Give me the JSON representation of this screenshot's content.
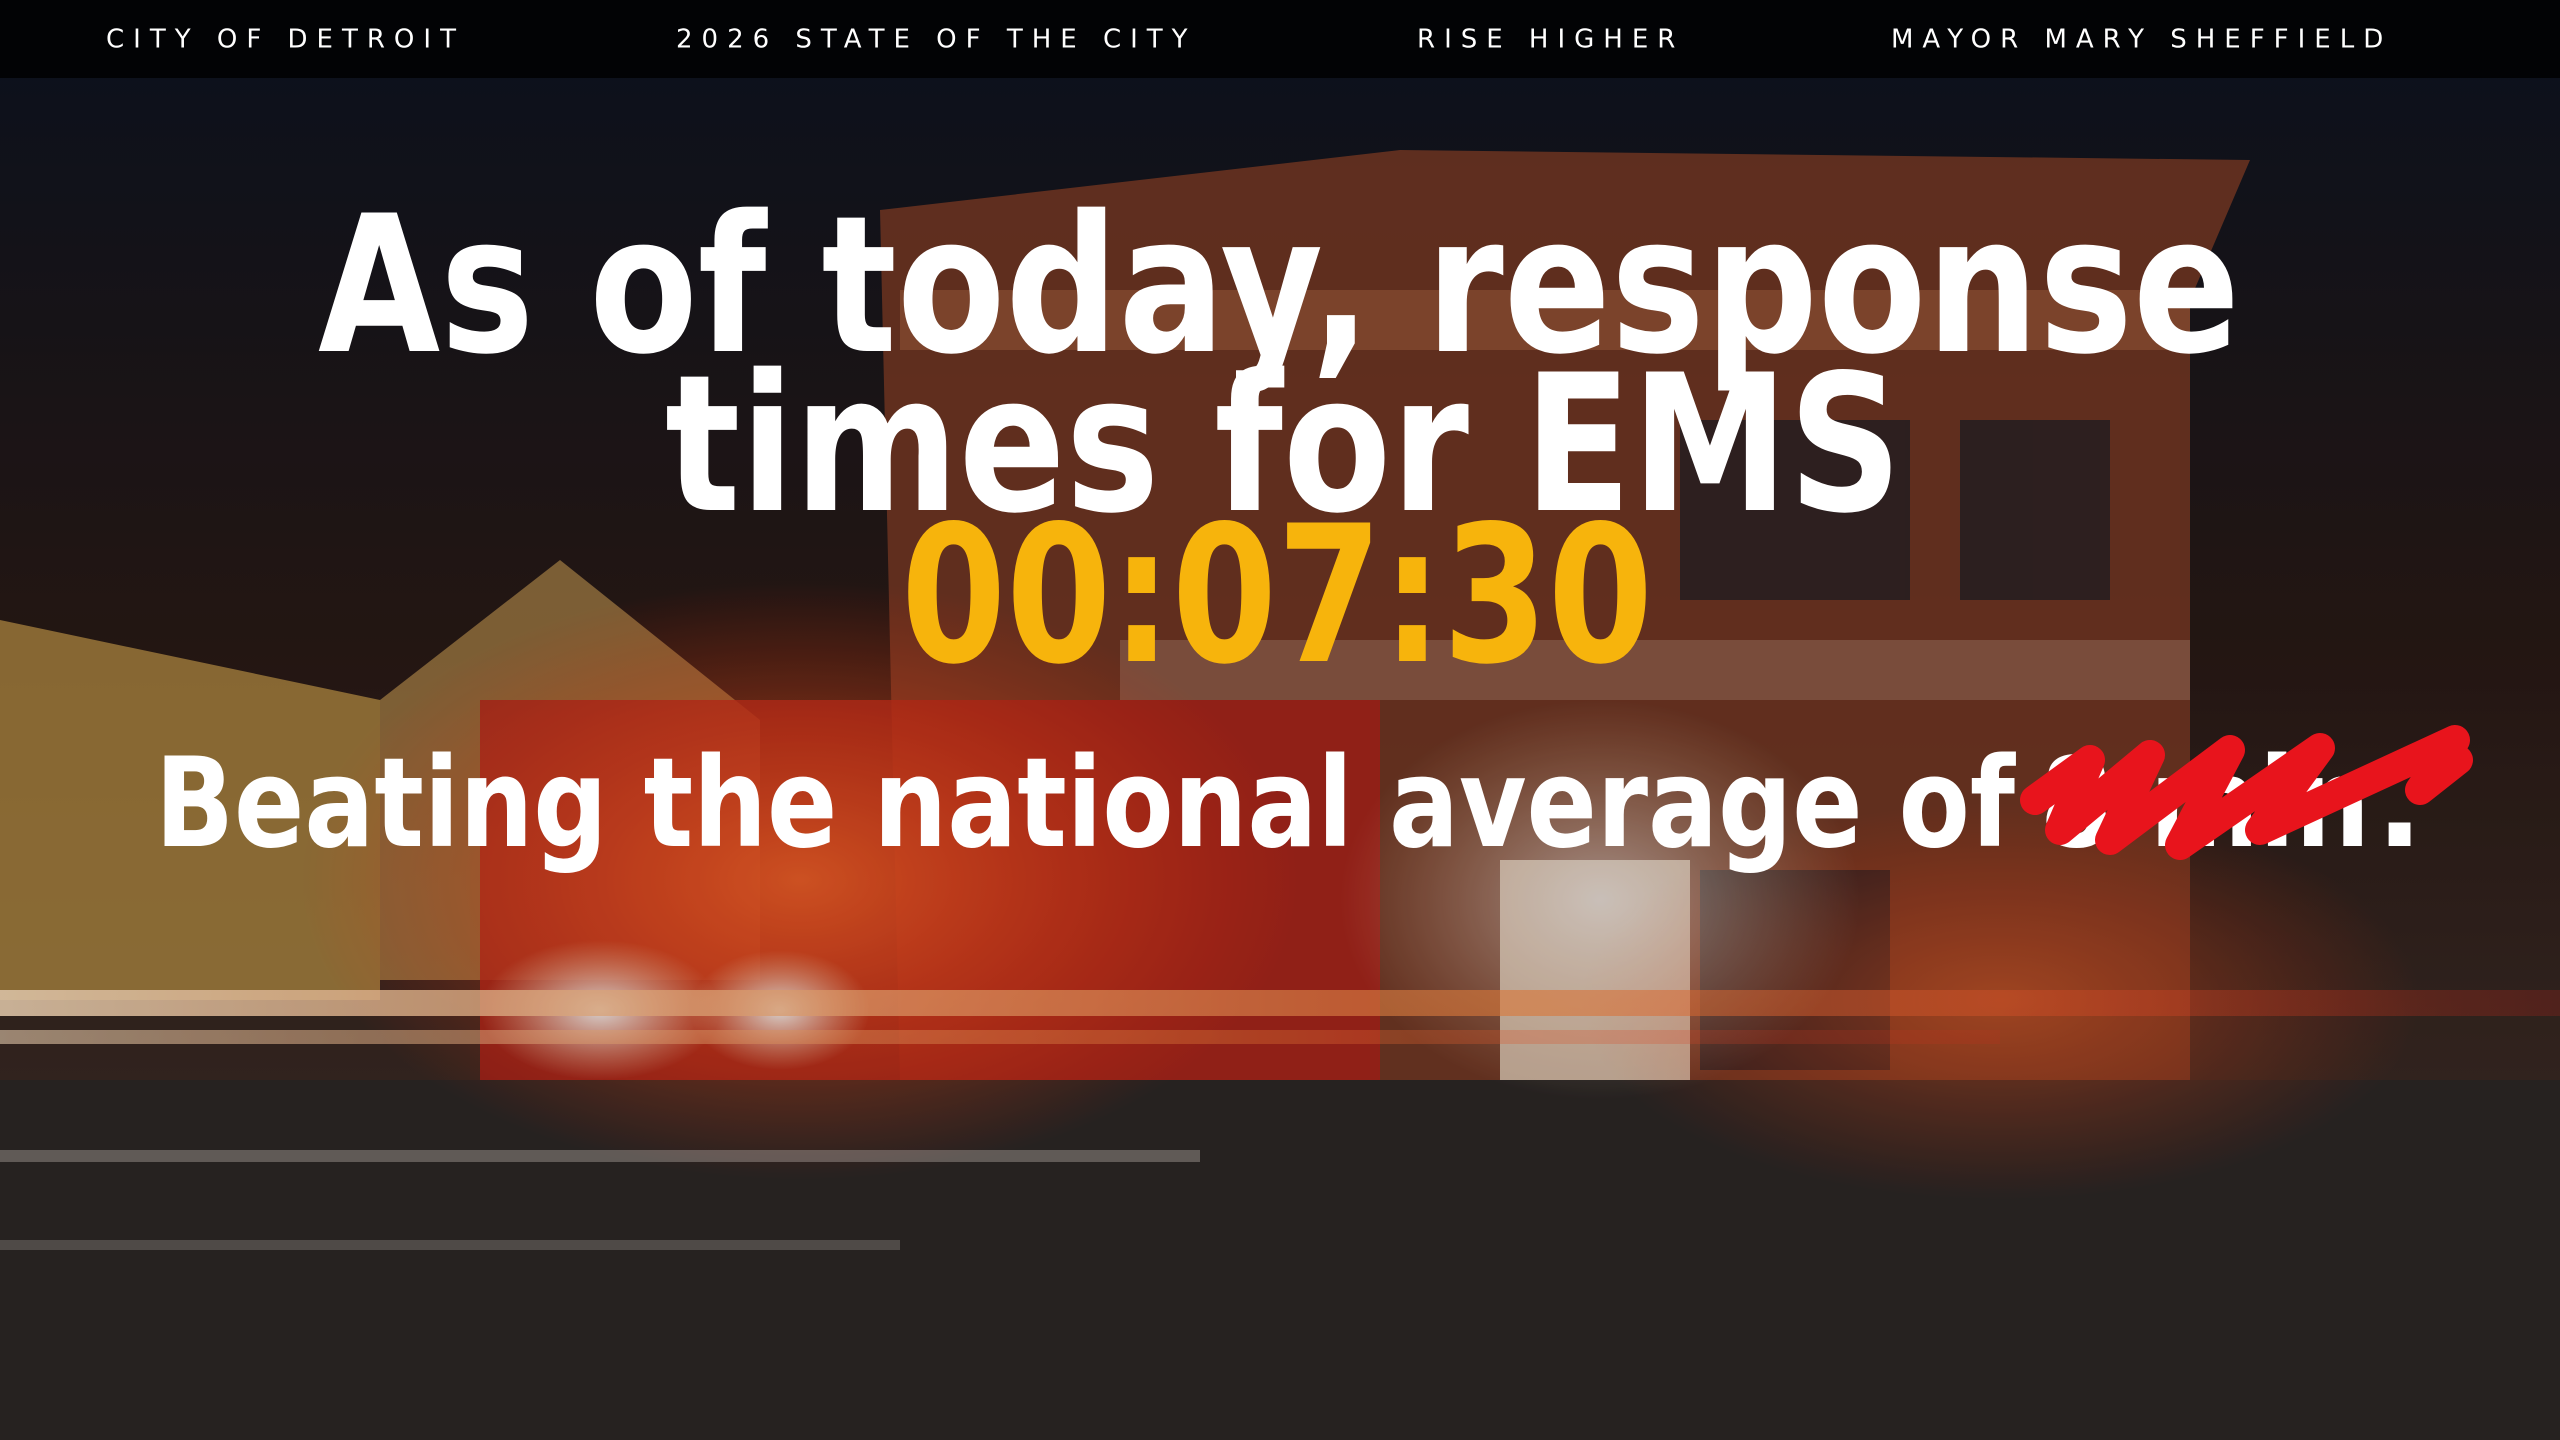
{
  "header": {
    "items": [
      "CITY OF DETROIT",
      "2026 STATE OF THE CITY",
      "RISE HIGHER",
      "MAYOR MARY SHEFFIELD"
    ]
  },
  "slide": {
    "headline": [
      "As of today, response",
      "times for EMS"
    ],
    "timer": "00:07:30",
    "subline": "Beating the national average of",
    "struck": "8 min",
    "end": "."
  }
}
